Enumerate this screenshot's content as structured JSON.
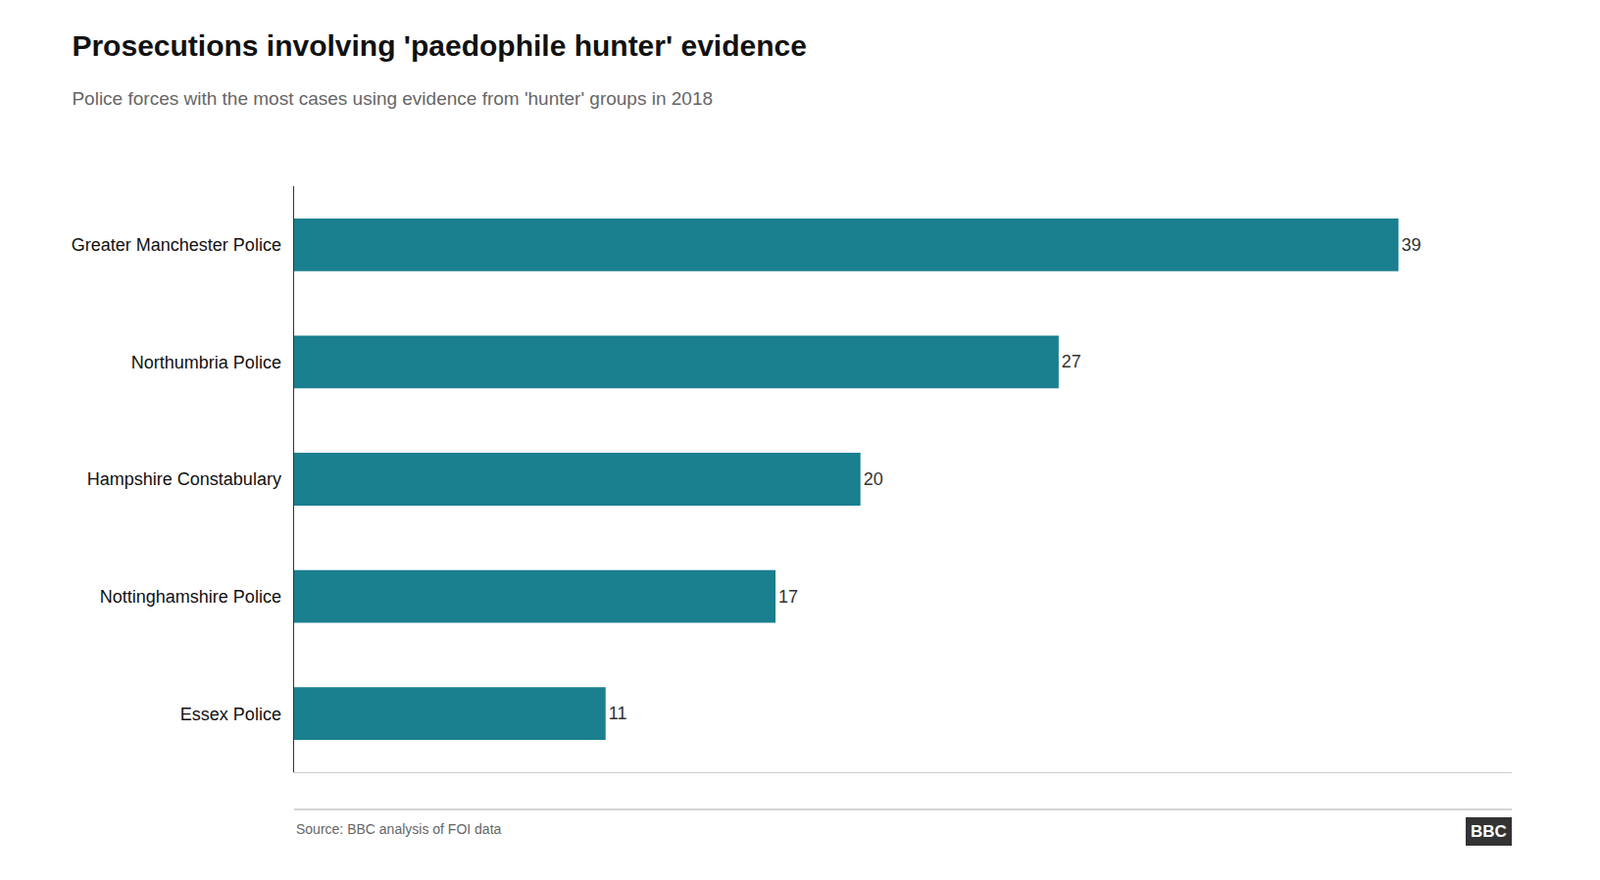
{
  "chart_data": {
    "type": "bar",
    "orientation": "horizontal",
    "title": "Prosecutions involving 'paedophile hunter' evidence",
    "subtitle": "Police forces with the most cases using evidence from 'hunter' groups in 2018",
    "categories": [
      "Essex Police",
      "Nottinghamshire Police",
      "Hampshire Constabulary",
      "Northumbria Police",
      "Greater Manchester Police"
    ],
    "values": [
      11,
      17,
      20,
      27,
      39
    ],
    "color": "#1a7f8e",
    "xlim": [
      0,
      43
    ],
    "grid": false,
    "data_labels": true,
    "tick_labels": "y",
    "annotations": [
      "Source: BBC analysis of FOI data",
      "BBC"
    ]
  }
}
